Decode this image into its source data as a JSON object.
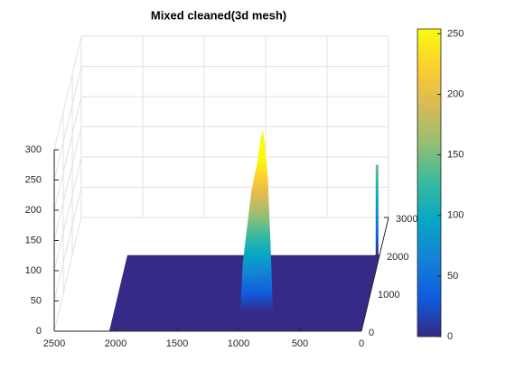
{
  "chart_data": {
    "type": "surface",
    "title": "Mixed cleaned(3d mesh)",
    "x": [
      1020,
      1000,
      960,
      930,
      900,
      880,
      860,
      840,
      820,
      800,
      780,
      760
    ],
    "values": [
      5,
      80,
      150,
      200,
      230,
      250,
      280,
      300,
      270,
      220,
      120,
      5
    ],
    "spike": {
      "x": 20,
      "y": 2000,
      "value": 150
    },
    "xlim": [
      0,
      2500
    ],
    "xticks": [
      0,
      500,
      1000,
      1500,
      2000,
      2500
    ],
    "ylim": [
      0,
      3000
    ],
    "yticks": [
      0,
      1000,
      2000,
      3000
    ],
    "zlim": [
      0,
      300
    ],
    "zticks": [
      0,
      50,
      100,
      150,
      200,
      250,
      300
    ],
    "clim": [
      0,
      254
    ],
    "cticks": [
      0,
      50,
      100,
      150,
      200,
      250
    ],
    "colormap": [
      "#352a87",
      "#0f5cdd",
      "#1481d6",
      "#06a7c6",
      "#38b99e",
      "#92bf73",
      "#d9ba56",
      "#fcce2e",
      "#f9fb0e"
    ],
    "grid": true
  }
}
